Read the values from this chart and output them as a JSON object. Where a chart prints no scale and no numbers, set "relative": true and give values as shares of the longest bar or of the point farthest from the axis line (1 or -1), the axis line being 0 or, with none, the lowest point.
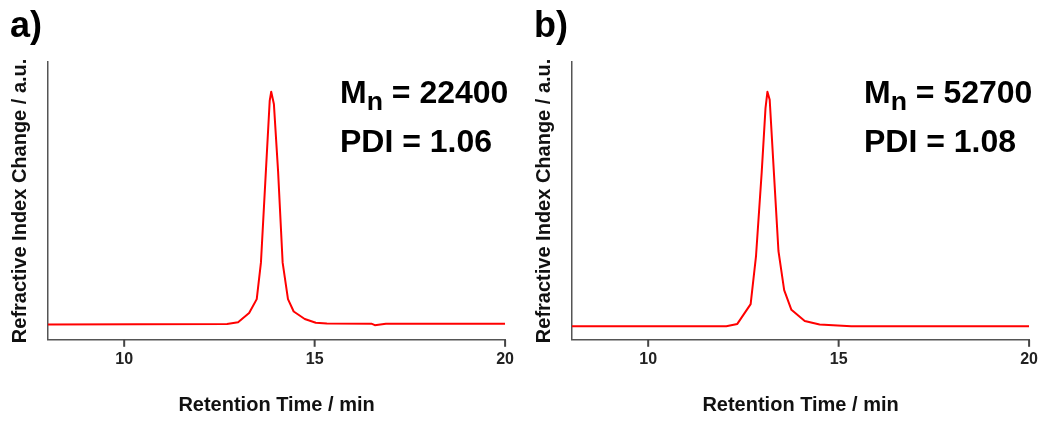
{
  "chart_data": [
    {
      "type": "line",
      "title": "a)",
      "xlabel": "Retention Time / min",
      "ylabel": "Refractive Index Change / a.u.",
      "relative": true,
      "xlim": [
        8,
        20
      ],
      "xticks": [
        10,
        15,
        20
      ],
      "tick_labels": "x",
      "grid": false,
      "legend": false,
      "marker": "none",
      "line_style": "solid",
      "annotations": [
        "M$_{n}$ = 22400",
        "PDI = 1.06"
      ],
      "series": [
        {
          "color": "#ff0000",
          "x": [
            8,
            12.7,
            12.99,
            13.28,
            13.48,
            13.59,
            13.72,
            13.82,
            13.86,
            13.93,
            14.04,
            14.16,
            14.3,
            14.45,
            14.74,
            15.03,
            15.32,
            16.49,
            16.58,
            16.87,
            20
          ],
          "values": [
            0.062,
            0.064,
            0.071,
            0.108,
            0.164,
            0.311,
            0.68,
            0.963,
            1,
            0.951,
            0.68,
            0.311,
            0.164,
            0.114,
            0.084,
            0.069,
            0.066,
            0.065,
            0.059,
            0.065,
            0.065
          ]
        }
      ]
    },
    {
      "type": "line",
      "title": "b)",
      "xlabel": "Retention Time / min",
      "ylabel": "Refractive Index Change / a.u.",
      "relative": true,
      "xlim": [
        8,
        20
      ],
      "xticks": [
        10,
        15,
        20
      ],
      "tick_labels": "x",
      "grid": false,
      "legend": false,
      "marker": "none",
      "line_style": "solid",
      "annotations": [
        "M$_{n}$ = 52700",
        "PDI = 1.08"
      ],
      "series": [
        {
          "color": "#ff0000",
          "x": [
            8,
            12.05,
            12.34,
            12.69,
            12.83,
            12.98,
            13.08,
            13.13,
            13.19,
            13.3,
            13.42,
            13.57,
            13.76,
            14.11,
            14.5,
            15.33,
            20
          ],
          "values": [
            0.055,
            0.055,
            0.064,
            0.144,
            0.336,
            0.675,
            0.934,
            1,
            0.968,
            0.675,
            0.358,
            0.2,
            0.121,
            0.076,
            0.062,
            0.055,
            0.055
          ]
        }
      ]
    }
  ]
}
